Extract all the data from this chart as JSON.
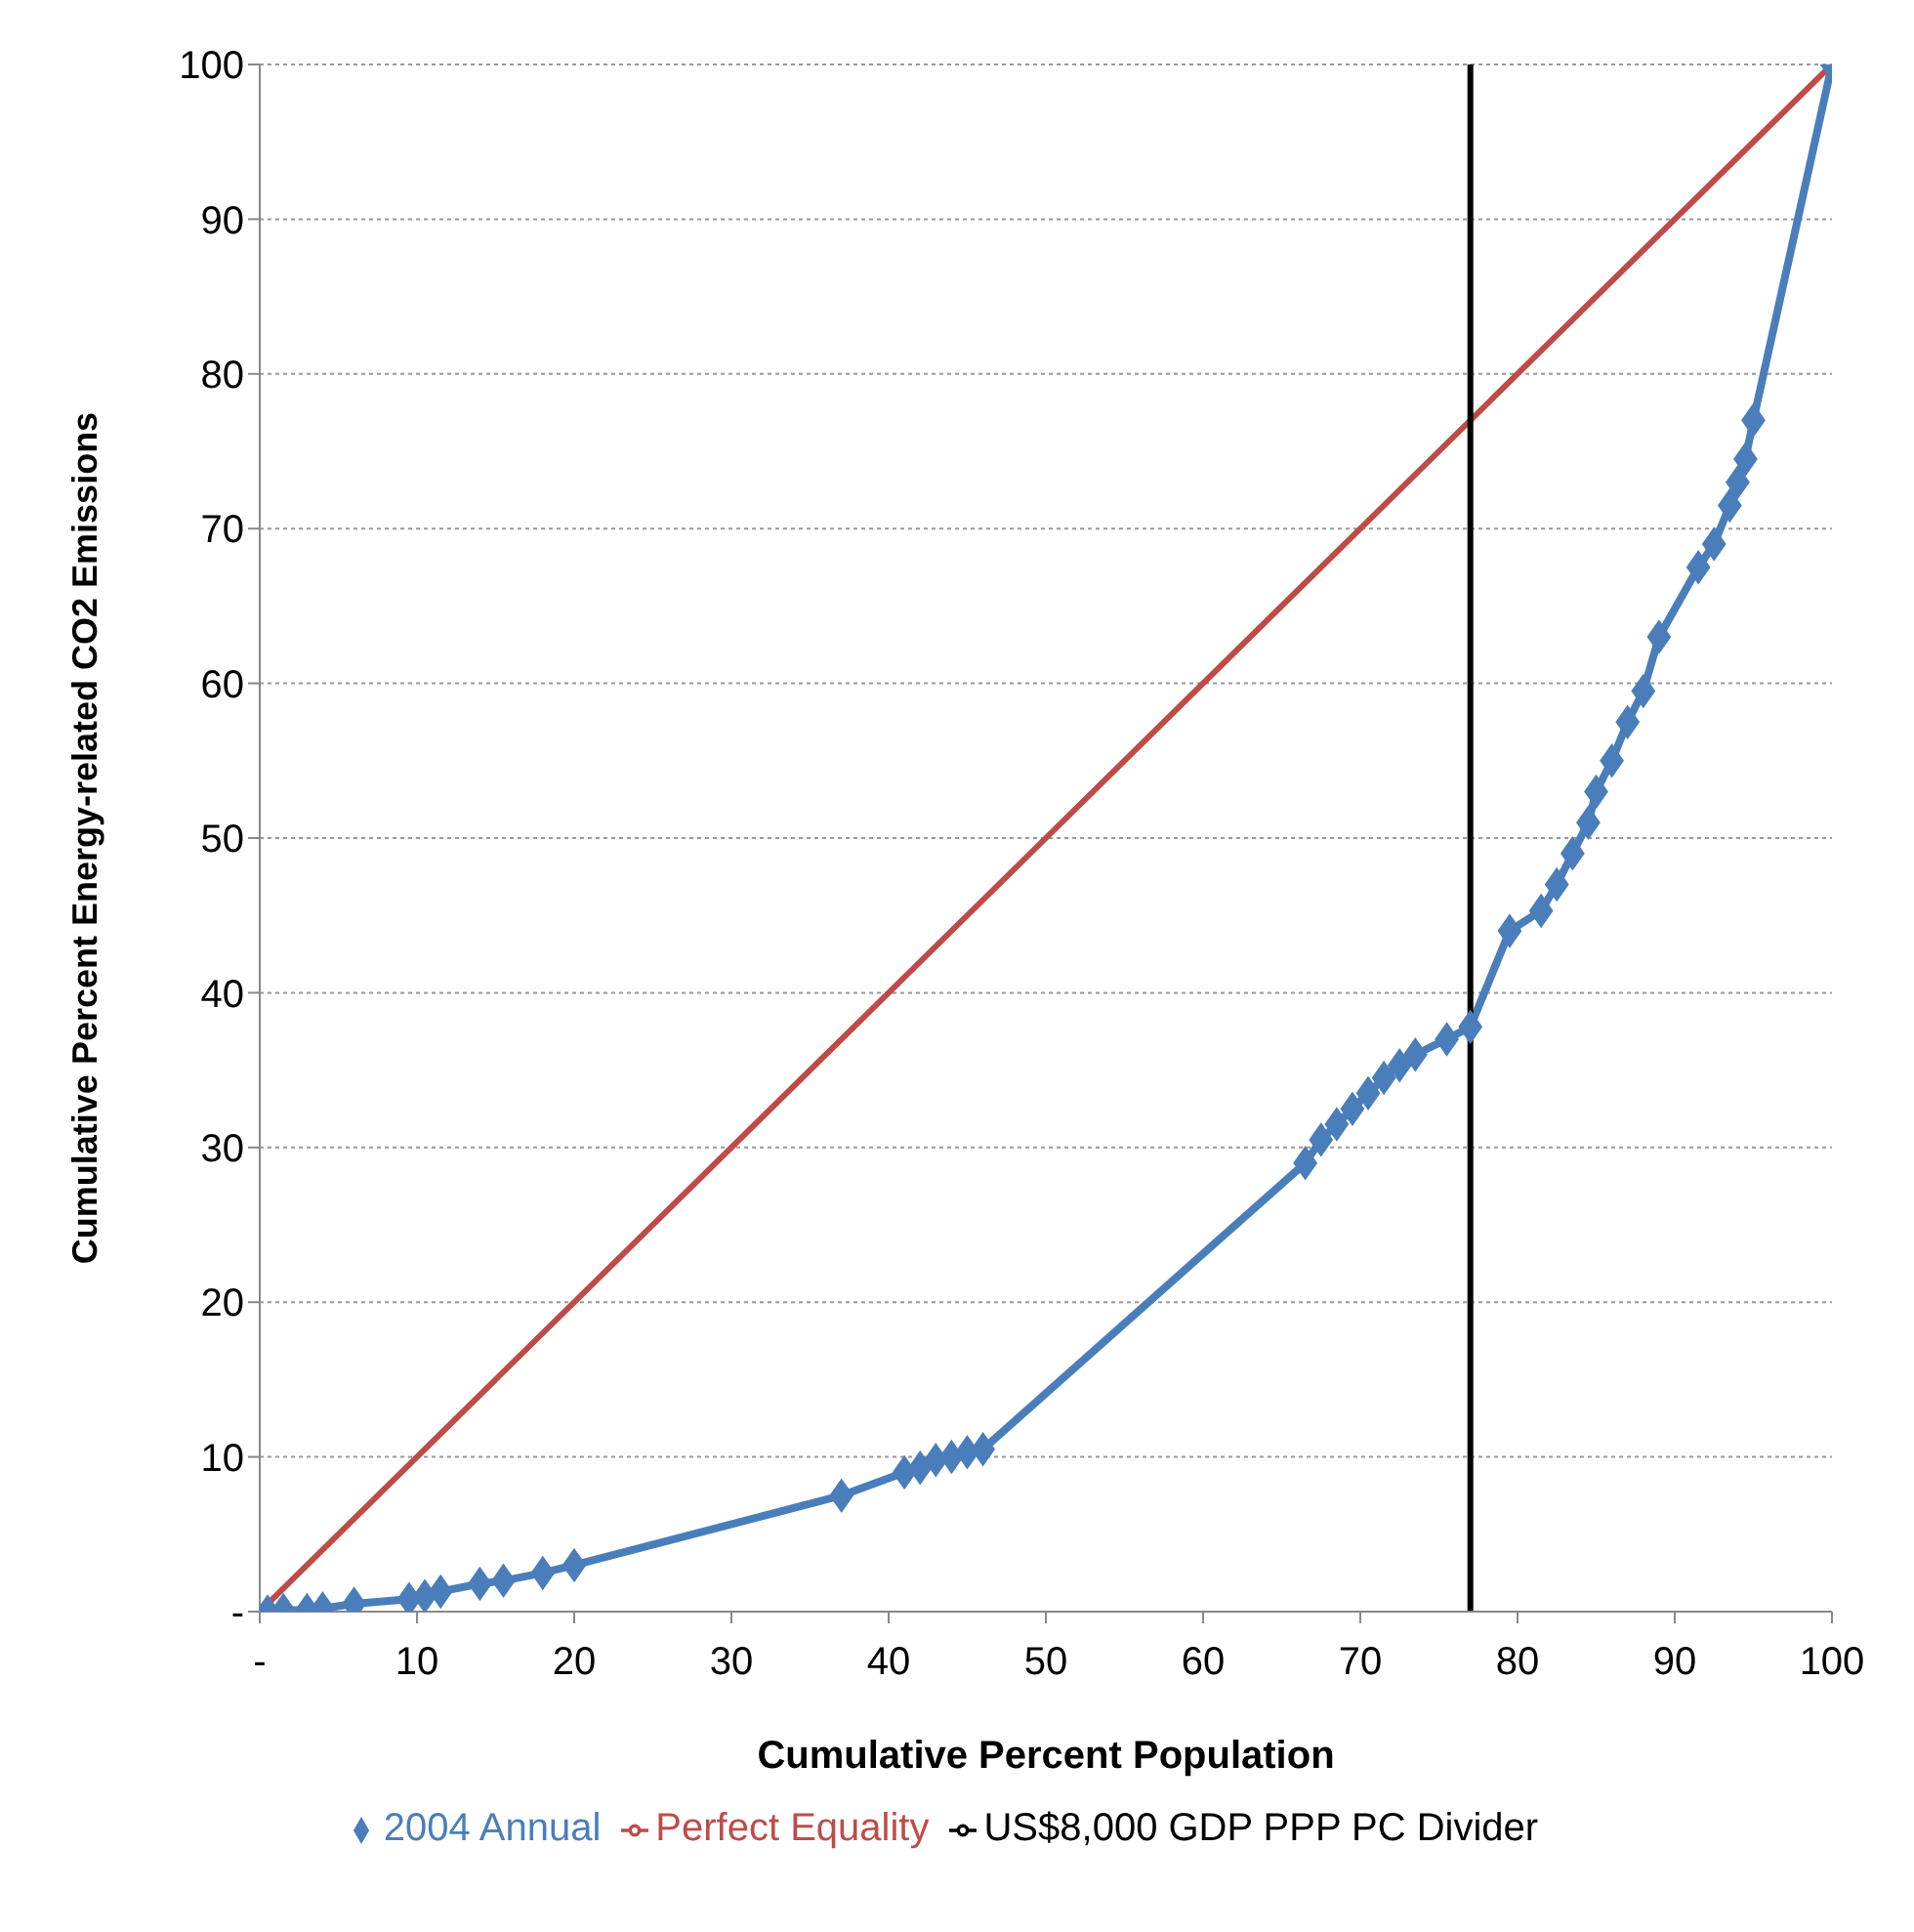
{
  "chart_data": {
    "type": "line",
    "xlabel": "Cumulative Percent Population",
    "ylabel": "Cumulative Percent Energy-related CO2 Emissions",
    "series": [
      {
        "name": "2004 Annual",
        "color": "#4a7ebb",
        "marker": "diamond",
        "x": [
          0.5,
          1.5,
          3,
          4,
          6,
          9.5,
          10.5,
          11.5,
          14,
          15.5,
          18,
          20,
          37,
          41,
          42,
          43,
          44,
          45,
          46,
          66.5,
          67.5,
          68.5,
          69.5,
          70.5,
          71.5,
          72.5,
          73.5,
          75.5,
          77,
          79.5,
          81.5,
          82.5,
          83.5,
          84.5,
          85,
          86,
          87,
          88,
          89,
          91.5,
          92.5,
          93.5,
          94,
          94.5,
          95,
          100
        ],
        "values": [
          0,
          0.1,
          0.1,
          0.2,
          0.5,
          0.8,
          1,
          1.3,
          1.8,
          2,
          2.5,
          3,
          7.5,
          9,
          9.3,
          9.8,
          10,
          10.3,
          10.5,
          29,
          30.5,
          31.5,
          32.5,
          33.5,
          34.5,
          35.3,
          36,
          37,
          37.8,
          44,
          45.3,
          47,
          49,
          51,
          53,
          55,
          57.5,
          59.5,
          63,
          67.5,
          69,
          71.5,
          73,
          74.5,
          77,
          100
        ]
      },
      {
        "name": "Perfect Equality",
        "color": "#be4b48",
        "marker": "none",
        "x": [
          0,
          100
        ],
        "values": [
          0,
          100
        ]
      },
      {
        "name": "US$8,000 GDP PPP PC Divider",
        "color": "#000000",
        "marker": "none",
        "x": [
          77,
          77
        ],
        "values": [
          0,
          100
        ]
      }
    ],
    "xlim": [
      0,
      100
    ],
    "xticks": [
      {
        "value": 0,
        "label": "-"
      },
      10,
      20,
      30,
      40,
      50,
      60,
      70,
      80,
      90,
      100
    ],
    "ylim": [
      0,
      100
    ],
    "yticks": [
      {
        "value": 0,
        "label": "-"
      },
      10,
      20,
      30,
      40,
      50,
      60,
      70,
      80,
      90,
      100
    ],
    "grid": "y",
    "legend": "bottom",
    "line_style": "solid"
  }
}
